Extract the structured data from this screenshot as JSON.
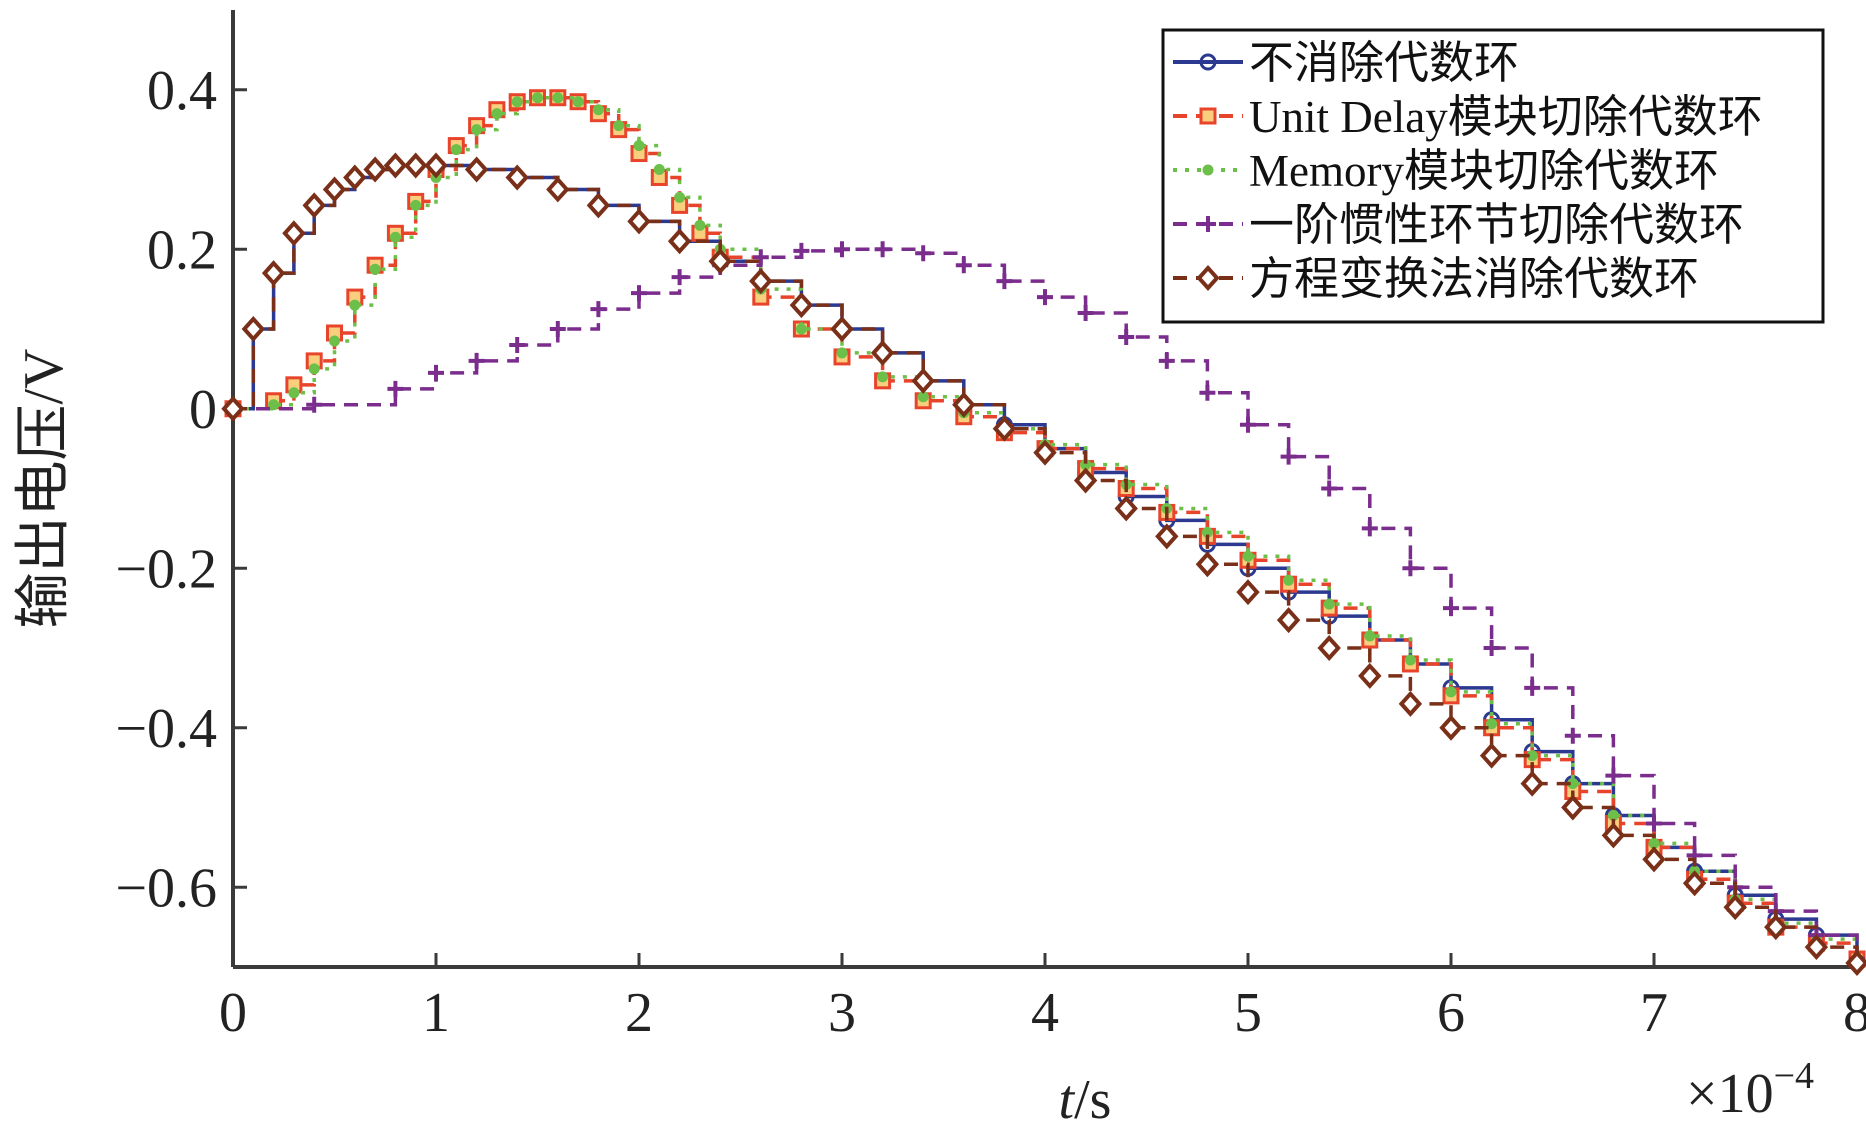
{
  "chart_data": {
    "type": "line",
    "title": "",
    "xlabel_italic": "t",
    "xlabel_rest": "/s",
    "ylabel": "输出电压/V",
    "x_exponent_label": "×10",
    "x_exponent_power": "−4",
    "xlim": [
      0,
      8
    ],
    "ylim": [
      -0.7,
      0.5
    ],
    "xticks": [
      0,
      1,
      2,
      3,
      4,
      5,
      6,
      7,
      8
    ],
    "xtick_labels": [
      "0",
      "1",
      "2",
      "3",
      "4",
      "5",
      "6",
      "7",
      "8"
    ],
    "yticks": [
      0.4,
      0.2,
      0,
      -0.2,
      -0.4,
      -0.6
    ],
    "ytick_labels": [
      "0.4",
      "0.2",
      "0",
      "−0.2",
      "−0.4",
      "−0.6"
    ],
    "grid": false,
    "legend_position": "top-right",
    "series": [
      {
        "name": "不消除代数环",
        "color": "#2b3990",
        "line_style": "solid",
        "marker": "circle",
        "points": [
          [
            0,
            0
          ],
          [
            0.1,
            0.1
          ],
          [
            0.2,
            0.17
          ],
          [
            0.3,
            0.22
          ],
          [
            0.4,
            0.255
          ],
          [
            0.5,
            0.275
          ],
          [
            0.6,
            0.29
          ],
          [
            0.7,
            0.3
          ],
          [
            0.8,
            0.305
          ],
          [
            0.9,
            0.305
          ],
          [
            1.0,
            0.305
          ],
          [
            1.2,
            0.3
          ],
          [
            1.4,
            0.29
          ],
          [
            1.6,
            0.275
          ],
          [
            1.8,
            0.255
          ],
          [
            2.0,
            0.235
          ],
          [
            2.2,
            0.21
          ],
          [
            2.4,
            0.185
          ],
          [
            2.6,
            0.16
          ],
          [
            2.8,
            0.13
          ],
          [
            3.0,
            0.1
          ],
          [
            3.2,
            0.07
          ],
          [
            3.4,
            0.035
          ],
          [
            3.6,
            0.005
          ],
          [
            3.8,
            -0.02
          ],
          [
            4.0,
            -0.05
          ],
          [
            4.2,
            -0.08
          ],
          [
            4.4,
            -0.11
          ],
          [
            4.6,
            -0.14
          ],
          [
            4.8,
            -0.17
          ],
          [
            5.0,
            -0.2
          ],
          [
            5.2,
            -0.23
          ],
          [
            5.4,
            -0.26
          ],
          [
            5.6,
            -0.29
          ],
          [
            5.8,
            -0.32
          ],
          [
            6.0,
            -0.35
          ],
          [
            6.2,
            -0.39
          ],
          [
            6.4,
            -0.43
          ],
          [
            6.6,
            -0.47
          ],
          [
            6.8,
            -0.51
          ],
          [
            7.0,
            -0.55
          ],
          [
            7.2,
            -0.58
          ],
          [
            7.4,
            -0.61
          ],
          [
            7.6,
            -0.64
          ],
          [
            7.8,
            -0.66
          ],
          [
            8.0,
            -0.69
          ]
        ]
      },
      {
        "name": "Unit Delay模块切除代数环",
        "color": "#e8442c",
        "line_style": "dashed",
        "marker": "square",
        "points": [
          [
            0,
            0
          ],
          [
            0.2,
            0.01
          ],
          [
            0.3,
            0.03
          ],
          [
            0.4,
            0.06
          ],
          [
            0.5,
            0.095
          ],
          [
            0.6,
            0.14
          ],
          [
            0.7,
            0.18
          ],
          [
            0.8,
            0.22
          ],
          [
            0.9,
            0.26
          ],
          [
            1.0,
            0.3
          ],
          [
            1.1,
            0.33
          ],
          [
            1.2,
            0.355
          ],
          [
            1.3,
            0.375
          ],
          [
            1.4,
            0.385
          ],
          [
            1.5,
            0.39
          ],
          [
            1.6,
            0.39
          ],
          [
            1.7,
            0.385
          ],
          [
            1.8,
            0.37
          ],
          [
            1.9,
            0.35
          ],
          [
            2.0,
            0.32
          ],
          [
            2.1,
            0.29
          ],
          [
            2.2,
            0.255
          ],
          [
            2.3,
            0.22
          ],
          [
            2.4,
            0.19
          ],
          [
            2.6,
            0.14
          ],
          [
            2.8,
            0.1
          ],
          [
            3.0,
            0.065
          ],
          [
            3.2,
            0.035
          ],
          [
            3.4,
            0.01
          ],
          [
            3.6,
            -0.01
          ],
          [
            3.8,
            -0.03
          ],
          [
            4.0,
            -0.05
          ],
          [
            4.2,
            -0.075
          ],
          [
            4.4,
            -0.1
          ],
          [
            4.6,
            -0.13
          ],
          [
            4.8,
            -0.16
          ],
          [
            5.0,
            -0.19
          ],
          [
            5.2,
            -0.22
          ],
          [
            5.4,
            -0.25
          ],
          [
            5.6,
            -0.29
          ],
          [
            5.8,
            -0.32
          ],
          [
            6.0,
            -0.36
          ],
          [
            6.2,
            -0.4
          ],
          [
            6.4,
            -0.44
          ],
          [
            6.6,
            -0.48
          ],
          [
            6.8,
            -0.52
          ],
          [
            7.0,
            -0.55
          ],
          [
            7.2,
            -0.59
          ],
          [
            7.4,
            -0.62
          ],
          [
            7.6,
            -0.65
          ],
          [
            7.8,
            -0.67
          ],
          [
            8.0,
            -0.69
          ]
        ]
      },
      {
        "name": "Memory模块切除代数环",
        "color": "#6cc04a",
        "line_style": "dotted",
        "marker": "dot",
        "points": [
          [
            0,
            0
          ],
          [
            0.2,
            0.005
          ],
          [
            0.3,
            0.02
          ],
          [
            0.4,
            0.05
          ],
          [
            0.5,
            0.085
          ],
          [
            0.6,
            0.13
          ],
          [
            0.7,
            0.175
          ],
          [
            0.8,
            0.215
          ],
          [
            0.9,
            0.255
          ],
          [
            1.0,
            0.29
          ],
          [
            1.1,
            0.325
          ],
          [
            1.2,
            0.35
          ],
          [
            1.3,
            0.37
          ],
          [
            1.4,
            0.385
          ],
          [
            1.5,
            0.39
          ],
          [
            1.6,
            0.39
          ],
          [
            1.7,
            0.385
          ],
          [
            1.8,
            0.375
          ],
          [
            1.9,
            0.355
          ],
          [
            2.0,
            0.33
          ],
          [
            2.1,
            0.3
          ],
          [
            2.2,
            0.265
          ],
          [
            2.3,
            0.23
          ],
          [
            2.4,
            0.2
          ],
          [
            2.6,
            0.15
          ],
          [
            2.8,
            0.1
          ],
          [
            3.0,
            0.07
          ],
          [
            3.2,
            0.04
          ],
          [
            3.4,
            0.015
          ],
          [
            3.6,
            -0.005
          ],
          [
            3.8,
            -0.025
          ],
          [
            4.0,
            -0.045
          ],
          [
            4.2,
            -0.07
          ],
          [
            4.4,
            -0.095
          ],
          [
            4.6,
            -0.125
          ],
          [
            4.8,
            -0.155
          ],
          [
            5.0,
            -0.185
          ],
          [
            5.2,
            -0.215
          ],
          [
            5.4,
            -0.245
          ],
          [
            5.6,
            -0.285
          ],
          [
            5.8,
            -0.315
          ],
          [
            6.0,
            -0.355
          ],
          [
            6.2,
            -0.395
          ],
          [
            6.4,
            -0.435
          ],
          [
            6.6,
            -0.47
          ],
          [
            6.8,
            -0.51
          ],
          [
            7.0,
            -0.545
          ],
          [
            7.2,
            -0.58
          ],
          [
            7.4,
            -0.615
          ],
          [
            7.6,
            -0.645
          ],
          [
            7.8,
            -0.665
          ],
          [
            8.0,
            -0.69
          ]
        ]
      },
      {
        "name": "一阶惯性环节切除代数环",
        "color": "#7b2d8e",
        "line_style": "dashed",
        "marker": "plus",
        "points": [
          [
            0,
            0
          ],
          [
            0.4,
            0.005
          ],
          [
            0.8,
            0.025
          ],
          [
            1.0,
            0.045
          ],
          [
            1.2,
            0.06
          ],
          [
            1.4,
            0.08
          ],
          [
            1.6,
            0.1
          ],
          [
            1.8,
            0.125
          ],
          [
            2.0,
            0.145
          ],
          [
            2.2,
            0.165
          ],
          [
            2.4,
            0.18
          ],
          [
            2.6,
            0.19
          ],
          [
            2.8,
            0.198
          ],
          [
            3.0,
            0.2
          ],
          [
            3.2,
            0.2
          ],
          [
            3.4,
            0.195
          ],
          [
            3.6,
            0.18
          ],
          [
            3.8,
            0.16
          ],
          [
            4.0,
            0.14
          ],
          [
            4.2,
            0.12
          ],
          [
            4.4,
            0.09
          ],
          [
            4.6,
            0.06
          ],
          [
            4.8,
            0.02
          ],
          [
            5.0,
            -0.02
          ],
          [
            5.2,
            -0.06
          ],
          [
            5.4,
            -0.1
          ],
          [
            5.6,
            -0.15
          ],
          [
            5.8,
            -0.2
          ],
          [
            6.0,
            -0.25
          ],
          [
            6.2,
            -0.3
          ],
          [
            6.4,
            -0.35
          ],
          [
            6.6,
            -0.41
          ],
          [
            6.8,
            -0.46
          ],
          [
            7.0,
            -0.52
          ],
          [
            7.2,
            -0.56
          ],
          [
            7.4,
            -0.6
          ],
          [
            7.6,
            -0.63
          ],
          [
            7.8,
            -0.66
          ],
          [
            8.0,
            -0.69
          ]
        ]
      },
      {
        "name": "方程变换法消除代数环",
        "color": "#7a3018",
        "line_style": "dashed",
        "marker": "diamond",
        "points": [
          [
            0,
            0
          ],
          [
            0.1,
            0.1
          ],
          [
            0.2,
            0.17
          ],
          [
            0.3,
            0.22
          ],
          [
            0.4,
            0.255
          ],
          [
            0.5,
            0.275
          ],
          [
            0.6,
            0.29
          ],
          [
            0.7,
            0.3
          ],
          [
            0.8,
            0.305
          ],
          [
            0.9,
            0.305
          ],
          [
            1.0,
            0.305
          ],
          [
            1.2,
            0.3
          ],
          [
            1.4,
            0.29
          ],
          [
            1.6,
            0.275
          ],
          [
            1.8,
            0.255
          ],
          [
            2.0,
            0.235
          ],
          [
            2.2,
            0.21
          ],
          [
            2.4,
            0.185
          ],
          [
            2.6,
            0.16
          ],
          [
            2.8,
            0.13
          ],
          [
            3.0,
            0.1
          ],
          [
            3.2,
            0.07
          ],
          [
            3.4,
            0.035
          ],
          [
            3.6,
            0.005
          ],
          [
            3.8,
            -0.025
          ],
          [
            4.0,
            -0.055
          ],
          [
            4.2,
            -0.09
          ],
          [
            4.4,
            -0.125
          ],
          [
            4.6,
            -0.16
          ],
          [
            4.8,
            -0.195
          ],
          [
            5.0,
            -0.23
          ],
          [
            5.2,
            -0.265
          ],
          [
            5.4,
            -0.3
          ],
          [
            5.6,
            -0.335
          ],
          [
            5.8,
            -0.37
          ],
          [
            6.0,
            -0.4
          ],
          [
            6.2,
            -0.435
          ],
          [
            6.4,
            -0.47
          ],
          [
            6.6,
            -0.5
          ],
          [
            6.8,
            -0.535
          ],
          [
            7.0,
            -0.565
          ],
          [
            7.2,
            -0.595
          ],
          [
            7.4,
            -0.625
          ],
          [
            7.6,
            -0.65
          ],
          [
            7.8,
            -0.675
          ],
          [
            8.0,
            -0.695
          ]
        ]
      }
    ]
  }
}
